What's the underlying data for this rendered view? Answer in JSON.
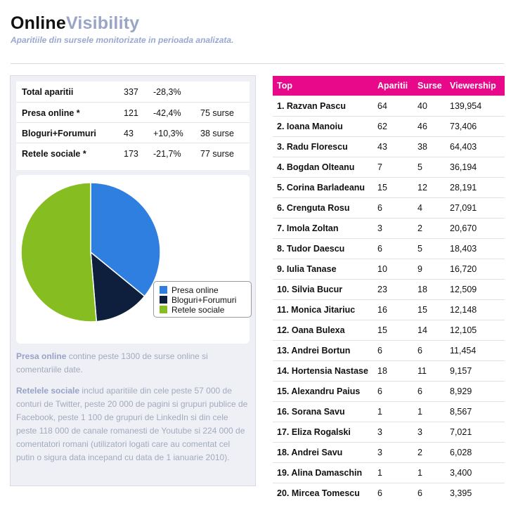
{
  "header": {
    "title_part1": "Online",
    "title_part2": "Visibility",
    "subtitle": "Aparitiile din sursele monitorizate in perioada analizata."
  },
  "stats": [
    {
      "label": "Total aparitii",
      "count": "337",
      "change": "-28,3%",
      "sources": ""
    },
    {
      "label": "Presa online *",
      "count": "121",
      "change": "-42,4%",
      "sources": "75 surse"
    },
    {
      "label": "Bloguri+Forumuri",
      "count": "43",
      "change": "+10,3%",
      "sources": "38 surse"
    },
    {
      "label": "Retele sociale *",
      "count": "173",
      "change": "-21,7%",
      "sources": "77 surse"
    }
  ],
  "chart_data": {
    "type": "pie",
    "slices": [
      {
        "label": "Presa online",
        "value": 121,
        "color": "#2f7fe0"
      },
      {
        "label": "Bloguri+Forumuri",
        "value": 43,
        "color": "#0d1f3c"
      },
      {
        "label": "Retele sociale",
        "value": 173,
        "color": "#86bd20"
      }
    ],
    "legend_position": "bottom-right"
  },
  "notes": {
    "p1_bold": "Presa online",
    "p1_text": " contine peste 1300 de surse online si comentariile date.",
    "p2_bold": "Retelele sociale",
    "p2_text": " includ aparitiile din cele peste 57 000 de conturi de Twitter, peste 20 000 de pagini si grupuri publice de Facebook,  peste 1 100 de grupuri de LinkedIn si din cele peste 118 000 de canale romanesti de Youtube si 224 000 de comentatori romani (utilizatori logati care au comentat cel putin o sigura data incepand cu data de 1 ianuarie 2010)."
  },
  "top_table": {
    "headers": [
      "Top",
      "Aparitii",
      "Surse",
      "Viewership"
    ],
    "rows": [
      [
        "1. Razvan Pascu",
        "64",
        "40",
        "139,954"
      ],
      [
        "2. Ioana Manoiu",
        "62",
        "46",
        "73,406"
      ],
      [
        "3. Radu Florescu",
        "43",
        "38",
        "64,403"
      ],
      [
        "4. Bogdan Olteanu",
        "7",
        "5",
        "36,194"
      ],
      [
        "5. Corina Barladeanu",
        "15",
        "12",
        "28,191"
      ],
      [
        "6. Crenguta Rosu",
        "6",
        "4",
        "27,091"
      ],
      [
        "7. Imola Zoltan",
        "3",
        "2",
        "20,670"
      ],
      [
        "8. Tudor Daescu",
        "6",
        "5",
        "18,403"
      ],
      [
        "9. Iulia Tanase",
        "10",
        "9",
        "16,720"
      ],
      [
        "10. Silvia Bucur",
        "23",
        "18",
        "12,509"
      ],
      [
        "11. Monica Jitariuc",
        "16",
        "15",
        "12,148"
      ],
      [
        "12. Oana Bulexa",
        "15",
        "14",
        "12,105"
      ],
      [
        "13. Andrei Bortun",
        "6",
        "6",
        "11,454"
      ],
      [
        "14. Hortensia Nastase",
        "18",
        "11",
        "9,157"
      ],
      [
        "15. Alexandru Paius",
        "6",
        "6",
        "8,929"
      ],
      [
        "16. Sorana Savu",
        "1",
        "1",
        "8,567"
      ],
      [
        "17. Eliza Rogalski",
        "3",
        "3",
        "7,021"
      ],
      [
        "18. Andrei Savu",
        "3",
        "2",
        "6,028"
      ],
      [
        "19. Alina Damaschin",
        "1",
        "1",
        "3,400"
      ],
      [
        "20. Mircea Tomescu",
        "6",
        "6",
        "3,395"
      ]
    ]
  }
}
